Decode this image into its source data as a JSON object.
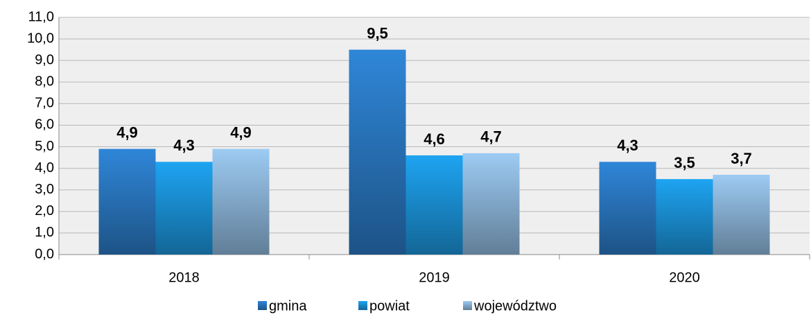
{
  "chart_data": {
    "type": "bar",
    "categories": [
      "2018",
      "2019",
      "2020"
    ],
    "series": [
      {
        "name": "gmina",
        "color": "#2f86d8",
        "values": [
          4.9,
          9.5,
          4.3
        ],
        "value_labels": [
          "4,9",
          "9,5",
          "4,3"
        ]
      },
      {
        "name": "powiat",
        "color": "#1ea4f2",
        "values": [
          4.3,
          4.6,
          3.5
        ],
        "value_labels": [
          "4,3",
          "4,6",
          "3,5"
        ]
      },
      {
        "name": "województwo",
        "color": "#9dcbf3",
        "values": [
          4.9,
          4.7,
          3.7
        ],
        "value_labels": [
          "4,9",
          "4,7",
          "3,7"
        ]
      }
    ],
    "ylim": [
      0,
      11
    ],
    "yticks": [
      {
        "value": 0,
        "label": "0,0"
      },
      {
        "value": 1,
        "label": "1,0"
      },
      {
        "value": 2,
        "label": "2,0"
      },
      {
        "value": 3,
        "label": "3,0"
      },
      {
        "value": 4,
        "label": "4,0"
      },
      {
        "value": 5,
        "label": "5,0"
      },
      {
        "value": 6,
        "label": "6,0"
      },
      {
        "value": 7,
        "label": "7,0"
      },
      {
        "value": 8,
        "label": "8,0"
      },
      {
        "value": 9,
        "label": "9,0"
      },
      {
        "value": 10,
        "label": "10,0"
      },
      {
        "value": 11,
        "label": "11,0"
      }
    ],
    "grid": true,
    "legend": "bottom"
  }
}
